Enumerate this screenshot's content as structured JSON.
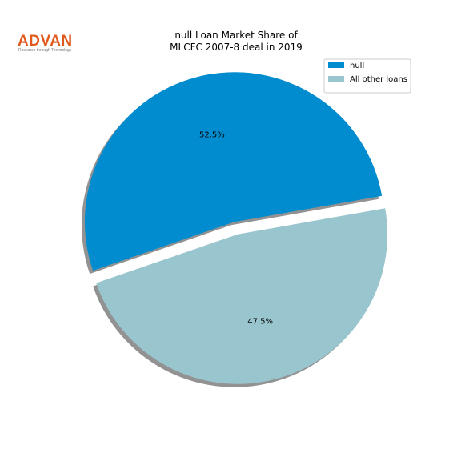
{
  "logo": {
    "text": "ADVAN",
    "tagline": "Research through Technology"
  },
  "chart_data": {
    "type": "pie",
    "title": "null Loan Market Share of\nMLCFC 2007-8 deal in 2019",
    "categories": [
      "null",
      "All other loans"
    ],
    "values": [
      52.5,
      47.5
    ],
    "value_labels": [
      "52.5%",
      "47.5%"
    ],
    "colors": [
      "#008ccf",
      "#99c5ce"
    ],
    "legend": "upper right"
  }
}
